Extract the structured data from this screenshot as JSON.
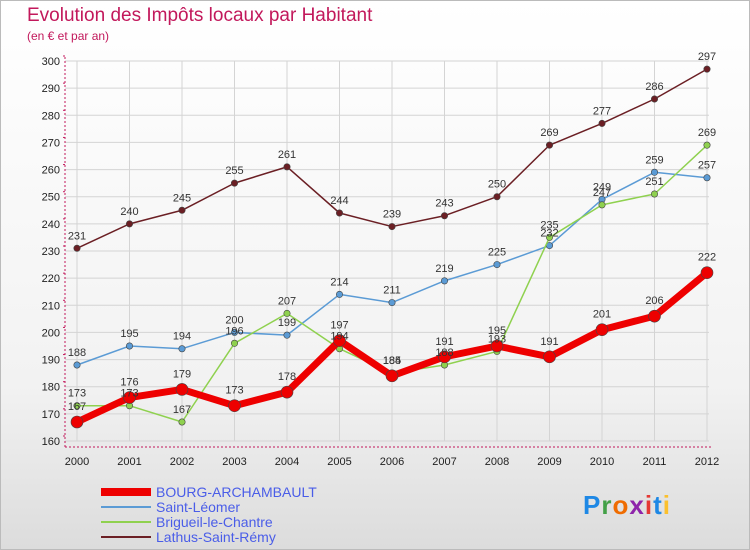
{
  "header": {
    "title": "Evolution des Impôts locaux par Habitant",
    "subtitle": "(en € et par an)"
  },
  "logo": {
    "text": "Proxiti",
    "colors": [
      "#1e88e5",
      "#43a047",
      "#ef6c00",
      "#8e24aa",
      "#e53935",
      "#1e88e5",
      "#fbc02d"
    ]
  },
  "chart_data": {
    "type": "line",
    "title": "Evolution des Impôts locaux par Habitant",
    "subtitle": "(en € et par an)",
    "xlabel": "",
    "ylabel": "",
    "x": [
      "2000",
      "2001",
      "2002",
      "2003",
      "2004",
      "2005",
      "2006",
      "2007",
      "2008",
      "2009",
      "2010",
      "2011",
      "2012"
    ],
    "ylim": [
      160,
      300
    ],
    "yticks": [
      160,
      170,
      180,
      190,
      200,
      210,
      220,
      230,
      240,
      250,
      260,
      270,
      280,
      290,
      300
    ],
    "grid": true,
    "legend_position": "bottom-left",
    "series": [
      {
        "name": "Lathus-Saint-Rémy",
        "color": "#6b1f24",
        "values": [
          231,
          240,
          245,
          255,
          261,
          244,
          239,
          243,
          250,
          269,
          277,
          286,
          297
        ]
      },
      {
        "name": "Saint-Léomer",
        "color": "#5b9bd5",
        "values": [
          188,
          195,
          194,
          200,
          199,
          214,
          211,
          219,
          225,
          232,
          249,
          259,
          257
        ]
      },
      {
        "name": "Brigueil-le-Chantre",
        "color": "#8fd14f",
        "values": [
          173,
          173,
          167,
          196,
          207,
          194,
          185,
          188,
          193,
          235,
          247,
          251,
          269
        ]
      },
      {
        "name": "BOURG-ARCHAMBAULT",
        "color": "#ee0000",
        "values": [
          167,
          176,
          179,
          173,
          178,
          197,
          184,
          191,
          195,
          191,
          201,
          206,
          222
        ]
      }
    ],
    "legend_order": [
      "BOURG-ARCHAMBAULT",
      "Saint-Léomer",
      "Brigueil-le-Chantre",
      "Lathus-Saint-Rémy"
    ]
  }
}
